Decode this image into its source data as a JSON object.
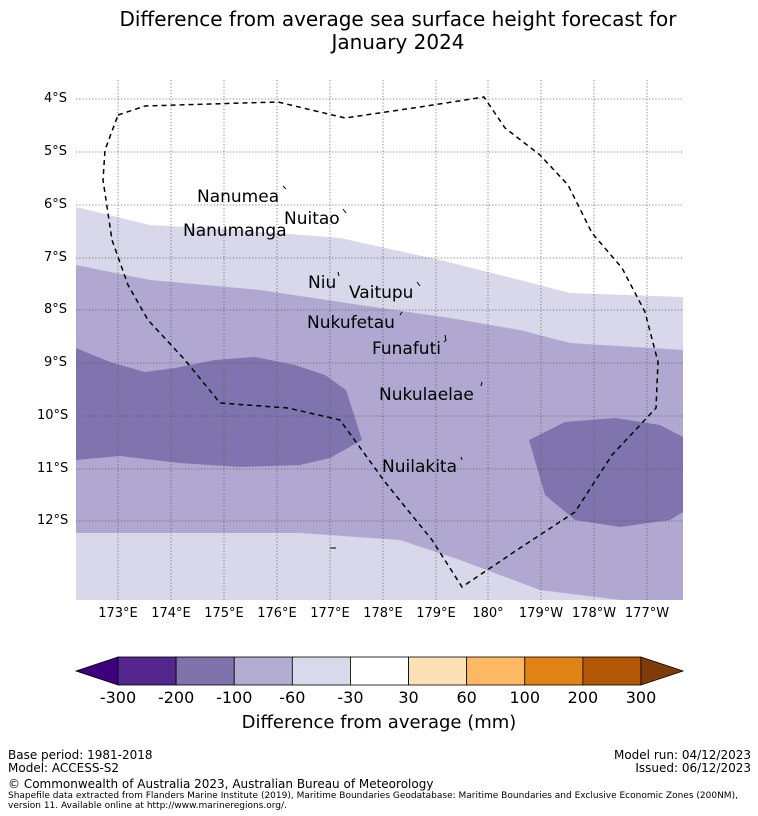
{
  "title_line1": "Difference from average sea surface height forecast for",
  "title_line2": "January 2024",
  "lat_labels": [
    "4°S",
    "5°S",
    "6°S",
    "7°S",
    "8°S",
    "9°S",
    "10°S",
    "11°S",
    "12°S"
  ],
  "lon_labels": [
    "173°E",
    "174°E",
    "175°E",
    "176°E",
    "177°E",
    "178°E",
    "179°E",
    "180°",
    "179°W",
    "178°W",
    "177°W"
  ],
  "places": {
    "nanumea": "Nanumea",
    "nuitao": "Nuitao",
    "nanumanga": "Nanumanga",
    "niu": "Niu",
    "vaitupu": "Vaitupu",
    "nukufetau": "Nukufetau",
    "funafuti": "Funafuti",
    "nukulaelae": "Nukulaelae",
    "nuilakita": "Nuilakita"
  },
  "colorbar": {
    "ticks": [
      "-300",
      "-200",
      "-100",
      "-60",
      "-30",
      "30",
      "60",
      "100",
      "200",
      "300"
    ],
    "colors": [
      "#3f007d",
      "#54278f",
      "#8073ac",
      "#b2abd2",
      "#d8daeb",
      "#ffffff",
      "#fee0b6",
      "#fdb863",
      "#e08214",
      "#b35806",
      "#7f3b08"
    ],
    "title": "Difference from average (mm)"
  },
  "legend_colors_used": {
    "band_-30_-60": "#d8d8ea",
    "band_-60_-100": "#b0a8d0",
    "band_-100_-200": "#8074ae"
  },
  "footer": {
    "base_period": "Base period: 1981-2018",
    "model": "Model: ACCESS-S2",
    "model_run": "Model run: 04/12/2023",
    "issued": "Issued: 06/12/2023",
    "copyright": "© Commonwealth of Australia 2023, Australian Bureau of Meteorology",
    "shapefile_line1": "Shapefile data extracted from Flanders Marine Institute (2019), Maritime Boundaries Geodatabase: Maritime Boundaries and Exclusive Economic Zones (200NM),",
    "shapefile_line2": "version 11. Available online at http://www.marineregions.org/."
  }
}
